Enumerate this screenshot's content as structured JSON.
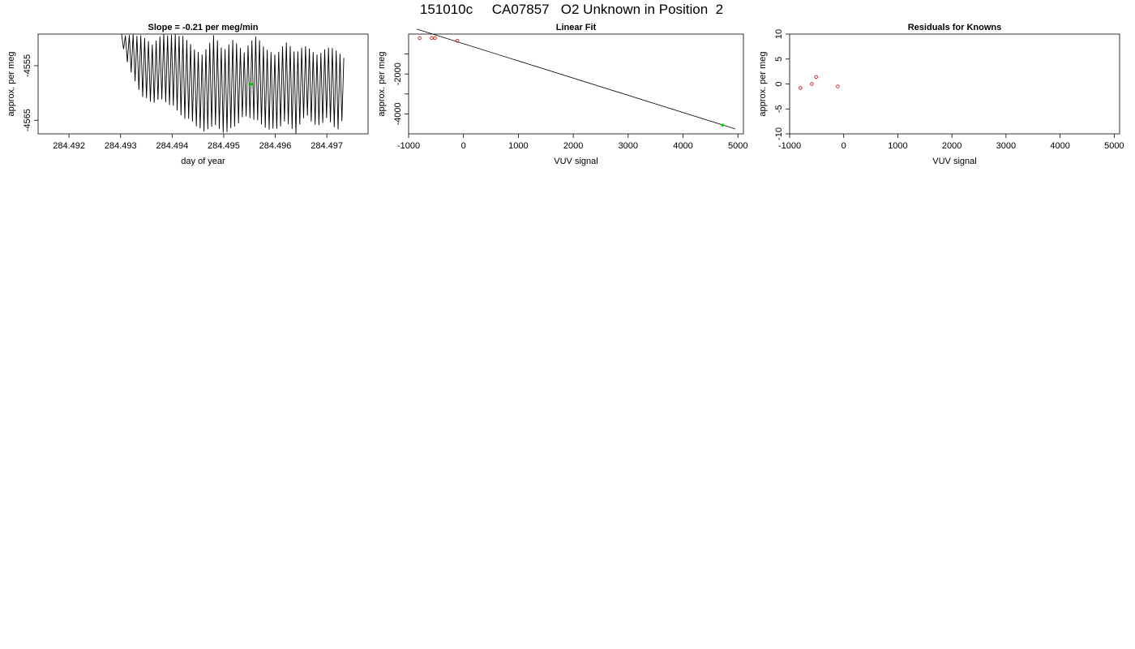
{
  "figure": {
    "title": "151010c     CA07857   O2 Unknown in Position  2"
  },
  "chart_data": [
    {
      "type": "line",
      "title": "Slope =  -0.21  per meg/min",
      "xlabel": "day of year",
      "ylabel": "approx. per meg",
      "xlim": [
        284.4914,
        284.4978
      ],
      "ylim": [
        -4567.5,
        -4549.2
      ],
      "x_ticks": [
        "284.492",
        "284.493",
        "284.494",
        "284.495",
        "284.496",
        "284.497"
      ],
      "y_ticks": [
        "-4555",
        "-4565"
      ],
      "line_color": "#000000",
      "highlight_color": "#00cc00",
      "x_start": 284.49302,
      "x_end": 284.49733,
      "n_cycles": 58,
      "series": [
        {
          "values_lower_envelope": [
            [
              284.49302,
              -4551.0
            ],
            [
              284.4932,
              -4556.5
            ],
            [
              284.4934,
              -4560.5
            ],
            [
              284.4936,
              -4562.0
            ],
            [
              284.4938,
              -4561.5
            ],
            [
              284.494,
              -4562.5
            ],
            [
              284.4942,
              -4564.5
            ],
            [
              284.4944,
              -4565.5
            ],
            [
              284.4946,
              -4567.5
            ],
            [
              284.4948,
              -4566.0
            ],
            [
              284.495,
              -4567.5
            ],
            [
              284.4952,
              -4566.5
            ],
            [
              284.4954,
              -4564.5
            ],
            [
              284.4956,
              -4565.0
            ],
            [
              284.4958,
              -4566.5
            ],
            [
              284.496,
              -4567.0
            ],
            [
              284.4962,
              -4565.5
            ],
            [
              284.4964,
              -4567.5
            ],
            [
              284.4966,
              -4564.0
            ],
            [
              284.4968,
              -4566.5
            ],
            [
              284.497,
              -4565.0
            ],
            [
              284.4972,
              -4567.0
            ],
            [
              284.49733,
              -4565.0
            ]
          ],
          "values_upper_envelope": [
            [
              284.49302,
              -4549.2
            ],
            [
              284.4934,
              -4549.2
            ],
            [
              284.4936,
              -4551.0
            ],
            [
              284.4938,
              -4549.2
            ],
            [
              284.4942,
              -4549.2
            ],
            [
              284.4944,
              -4551.5
            ],
            [
              284.4946,
              -4553.0
            ],
            [
              284.4948,
              -4549.2
            ],
            [
              284.495,
              -4552.0
            ],
            [
              284.4952,
              -4550.0
            ],
            [
              284.4954,
              -4552.5
            ],
            [
              284.4956,
              -4549.2
            ],
            [
              284.4958,
              -4551.5
            ],
            [
              284.496,
              -4553.0
            ],
            [
              284.4962,
              -4550.5
            ],
            [
              284.4964,
              -4552.5
            ],
            [
              284.4966,
              -4551.0
            ],
            [
              284.4968,
              -4553.0
            ],
            [
              284.497,
              -4551.5
            ],
            [
              284.4972,
              -4552.0
            ],
            [
              284.49733,
              -4553.5
            ]
          ]
        }
      ],
      "highlight_point": {
        "x": 284.49553,
        "y": -4558.4
      }
    },
    {
      "type": "scatter",
      "title": "Linear Fit",
      "xlabel": "VUV signal",
      "ylabel": "approx. per meg",
      "xlim": [
        -1000,
        5100
      ],
      "ylim": [
        -5000,
        0
      ],
      "x_ticks": [
        -1000,
        0,
        1000,
        2000,
        3000,
        4000,
        5000
      ],
      "y_ticks": [
        -2000,
        -4000
      ],
      "known_color": "#cc0000",
      "unknown_color": "#00cc00",
      "fit_color": "#000000",
      "knowns": [
        {
          "x": -800,
          "y": 210
        },
        {
          "x": -580,
          "y": 70
        },
        {
          "x": -520,
          "y": 20
        },
        {
          "x": -110,
          "y": -340
        }
      ],
      "unknowns": [
        {
          "x": 4720,
          "y": -4558
        }
      ],
      "fit_line": [
        {
          "x": -850,
          "y": 250
        },
        {
          "x": 4950,
          "y": -4750
        }
      ]
    },
    {
      "type": "scatter",
      "title": "Residuals for Knowns",
      "xlabel": "VUV signal",
      "ylabel": "approx. per meg",
      "xlim": [
        -1000,
        5100
      ],
      "ylim": [
        -10,
        10
      ],
      "x_ticks": [
        -1000,
        0,
        1000,
        2000,
        3000,
        4000,
        5000
      ],
      "y_ticks": [
        10,
        5,
        0,
        -5,
        -10
      ],
      "point_color": "#cc0000",
      "points": [
        {
          "x": -800,
          "y": -0.8
        },
        {
          "x": -590,
          "y": 0.0
        },
        {
          "x": -510,
          "y": 1.4
        },
        {
          "x": -110,
          "y": -0.5
        }
      ]
    }
  ]
}
